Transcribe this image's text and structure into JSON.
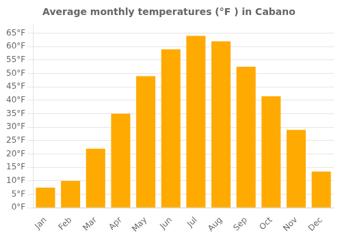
{
  "chart_data": {
    "type": "bar",
    "title": "Average monthly temperatures (°F ) in Cabano",
    "categories": [
      "Jan",
      "Feb",
      "Mar",
      "Apr",
      "May",
      "Jun",
      "Jul",
      "Aug",
      "Sep",
      "Oct",
      "Nov",
      "Dec"
    ],
    "values": [
      7.5,
      10.0,
      22.0,
      35.0,
      49.0,
      59.0,
      64.0,
      62.0,
      52.5,
      41.5,
      29.0,
      13.5
    ],
    "color": "#FFAA00",
    "ylim": [
      0,
      68
    ],
    "yticks": [
      {
        "value": 0,
        "label": "0°F"
      },
      {
        "value": 5,
        "label": "5°F"
      },
      {
        "value": 10,
        "label": "10°F"
      },
      {
        "value": 15,
        "label": "15°F"
      },
      {
        "value": 20,
        "label": "20°F"
      },
      {
        "value": 25,
        "label": "25°F"
      },
      {
        "value": 30,
        "label": "30°F"
      },
      {
        "value": 35,
        "label": "35°F"
      },
      {
        "value": 40,
        "label": "40°F"
      },
      {
        "value": 45,
        "label": "45°F"
      },
      {
        "value": 50,
        "label": "50°F"
      },
      {
        "value": 55,
        "label": "55°F"
      },
      {
        "value": 60,
        "label": "60°F"
      },
      {
        "value": 65,
        "label": "65°F"
      }
    ],
    "grid": true
  }
}
